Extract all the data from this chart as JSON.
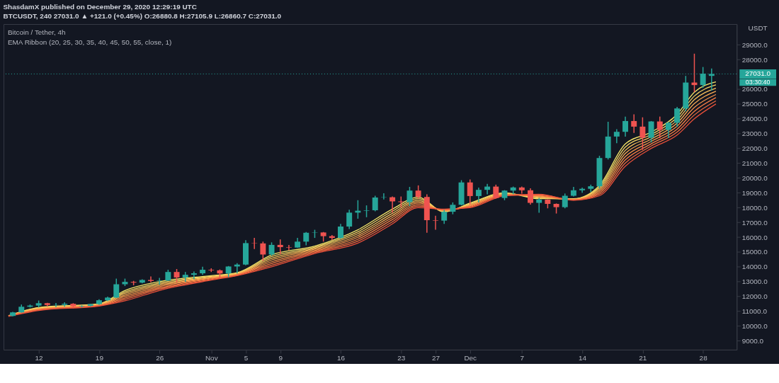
{
  "chart_data": {
    "type": "candlestick",
    "title": "ShasdamX published on December 29, 2020 12:29:19 UTC",
    "subtitle": "BTCUSDT, 240  27031.0 ▲ +121.0 (+0.45%) O:26880.8 H:27105.9 L:26860.7 C:27031.0",
    "ylabel": "USDT",
    "x": [
      "2020-10-09",
      "2020-10-10",
      "2020-10-11",
      "2020-10-12",
      "2020-10-13",
      "2020-10-14",
      "2020-10-15",
      "2020-10-16",
      "2020-10-17",
      "2020-10-18",
      "2020-10-19",
      "2020-10-20",
      "2020-10-21",
      "2020-10-22",
      "2020-10-23",
      "2020-10-24",
      "2020-10-25",
      "2020-10-26",
      "2020-10-27",
      "2020-10-28",
      "2020-10-29",
      "2020-10-30",
      "2020-10-31",
      "2020-11-01",
      "2020-11-02",
      "2020-11-03",
      "2020-11-04",
      "2020-11-05",
      "2020-11-06",
      "2020-11-07",
      "2020-11-08",
      "2020-11-09",
      "2020-11-10",
      "2020-11-11",
      "2020-11-12",
      "2020-11-13",
      "2020-11-14",
      "2020-11-15",
      "2020-11-16",
      "2020-11-17",
      "2020-11-18",
      "2020-11-19",
      "2020-11-20",
      "2020-11-21",
      "2020-11-22",
      "2020-11-23",
      "2020-11-24",
      "2020-11-25",
      "2020-11-26",
      "2020-11-27",
      "2020-11-28",
      "2020-11-29",
      "2020-11-30",
      "2020-12-01",
      "2020-12-02",
      "2020-12-03",
      "2020-12-04",
      "2020-12-05",
      "2020-12-06",
      "2020-12-07",
      "2020-12-08",
      "2020-12-09",
      "2020-12-10",
      "2020-12-11",
      "2020-12-12",
      "2020-12-13",
      "2020-12-14",
      "2020-12-15",
      "2020-12-16",
      "2020-12-17",
      "2020-12-18",
      "2020-12-19",
      "2020-12-20",
      "2020-12-21",
      "2020-12-22",
      "2020-12-23",
      "2020-12-24",
      "2020-12-25",
      "2020-12-26",
      "2020-12-27",
      "2020-12-28",
      "2020-12-29"
    ],
    "ohlc": [
      [
        10680,
        10950,
        10650,
        10920
      ],
      [
        10920,
        11450,
        10900,
        11300
      ],
      [
        11300,
        11450,
        11250,
        11380
      ],
      [
        11380,
        11720,
        11250,
        11540
      ],
      [
        11540,
        11560,
        11300,
        11420
      ],
      [
        11420,
        11550,
        11280,
        11430
      ],
      [
        11430,
        11600,
        11300,
        11500
      ],
      [
        11500,
        11540,
        11200,
        11330
      ],
      [
        11330,
        11400,
        11250,
        11360
      ],
      [
        11360,
        11500,
        11320,
        11480
      ],
      [
        11480,
        11800,
        11420,
        11740
      ],
      [
        11740,
        11980,
        11680,
        11920
      ],
      [
        11920,
        13200,
        11900,
        12820
      ],
      [
        12820,
        13200,
        12700,
        12980
      ],
      [
        12980,
        13050,
        12750,
        12930
      ],
      [
        12930,
        13150,
        12880,
        13110
      ],
      [
        13110,
        13350,
        12950,
        13040
      ],
      [
        13040,
        13250,
        12800,
        13070
      ],
      [
        13070,
        13800,
        13050,
        13650
      ],
      [
        13650,
        13850,
        12950,
        13280
      ],
      [
        13280,
        13650,
        12980,
        13460
      ],
      [
        13460,
        13680,
        13150,
        13560
      ],
      [
        13560,
        14000,
        13450,
        13800
      ],
      [
        13800,
        13900,
        13650,
        13760
      ],
      [
        13760,
        13820,
        13200,
        13550
      ],
      [
        13550,
        14050,
        13300,
        14020
      ],
      [
        14020,
        14250,
        13550,
        14150
      ],
      [
        14150,
        15800,
        14100,
        15600
      ],
      [
        15600,
        15950,
        15200,
        15580
      ],
      [
        15580,
        15700,
        14400,
        14830
      ],
      [
        14830,
        15650,
        14750,
        15480
      ],
      [
        15480,
        15850,
        14850,
        15330
      ],
      [
        15330,
        15480,
        15100,
        15300
      ],
      [
        15300,
        15950,
        15280,
        15700
      ],
      [
        15700,
        16350,
        15450,
        16300
      ],
      [
        16300,
        16500,
        15950,
        16320
      ],
      [
        16320,
        16350,
        15700,
        16070
      ],
      [
        16070,
        16150,
        15800,
        15950
      ],
      [
        15950,
        16900,
        15900,
        16720
      ],
      [
        16720,
        17850,
        16550,
        17660
      ],
      [
        17660,
        18500,
        17250,
        17790
      ],
      [
        17790,
        18150,
        17350,
        17820
      ],
      [
        17820,
        18800,
        17750,
        18680
      ],
      [
        18680,
        18970,
        18550,
        18700
      ],
      [
        18700,
        18750,
        17650,
        18420
      ],
      [
        18420,
        18750,
        18000,
        18370
      ],
      [
        18370,
        19400,
        18100,
        19150
      ],
      [
        19150,
        19500,
        18600,
        18720
      ],
      [
        18720,
        18900,
        16300,
        17150
      ],
      [
        17150,
        17450,
        16500,
        17120
      ],
      [
        17120,
        17850,
        16900,
        17720
      ],
      [
        17720,
        18350,
        17550,
        18190
      ],
      [
        18190,
        19850,
        18150,
        19700
      ],
      [
        19700,
        19900,
        18200,
        18780
      ],
      [
        18780,
        19350,
        18350,
        19200
      ],
      [
        19200,
        19600,
        18900,
        19420
      ],
      [
        19420,
        19550,
        18600,
        18650
      ],
      [
        18650,
        19180,
        18500,
        19150
      ],
      [
        19150,
        19420,
        18900,
        19360
      ],
      [
        19360,
        19420,
        18950,
        19170
      ],
      [
        19170,
        19300,
        18200,
        18320
      ],
      [
        18320,
        18650,
        17650,
        18540
      ],
      [
        18540,
        18560,
        17950,
        18250
      ],
      [
        18250,
        18280,
        17600,
        18030
      ],
      [
        18030,
        18950,
        17950,
        18800
      ],
      [
        18800,
        19400,
        18750,
        19170
      ],
      [
        19170,
        19350,
        19000,
        19270
      ],
      [
        19270,
        19550,
        19050,
        19440
      ],
      [
        19440,
        21500,
        19300,
        21350
      ],
      [
        21350,
        23800,
        21250,
        22800
      ],
      [
        22800,
        23300,
        22350,
        23120
      ],
      [
        23120,
        24150,
        22800,
        23850
      ],
      [
        23850,
        24300,
        23050,
        23470
      ],
      [
        23470,
        24100,
        21900,
        22720
      ],
      [
        22720,
        23850,
        22400,
        23820
      ],
      [
        23820,
        24150,
        22700,
        23250
      ],
      [
        23250,
        23800,
        22700,
        23730
      ],
      [
        23730,
        24800,
        23450,
        24700
      ],
      [
        24700,
        26900,
        24500,
        26450
      ],
      [
        26450,
        28400,
        25800,
        26280
      ],
      [
        26280,
        27500,
        26100,
        27050
      ],
      [
        26900,
        27400,
        25900,
        27031
      ]
    ],
    "colors": [
      "#26a69a",
      "#26a69a",
      "#26a69a",
      "#26a69a",
      "#ef5350",
      "#26a69a",
      "#26a69a",
      "#ef5350",
      "#26a69a",
      "#26a69a",
      "#26a69a",
      "#26a69a",
      "#26a69a",
      "#26a69a",
      "#ef5350",
      "#26a69a",
      "#ef5350",
      "#26a69a",
      "#26a69a",
      "#ef5350",
      "#26a69a",
      "#26a69a",
      "#26a69a",
      "#ef5350",
      "#ef5350",
      "#26a69a",
      "#26a69a",
      "#26a69a",
      "#ef5350",
      "#ef5350",
      "#26a69a",
      "#ef5350",
      "#ef5350",
      "#26a69a",
      "#26a69a",
      "#26a69a",
      "#ef5350",
      "#ef5350",
      "#26a69a",
      "#26a69a",
      "#26a69a",
      "#26a69a",
      "#26a69a",
      "#26a69a",
      "#ef5350",
      "#ef5350",
      "#26a69a",
      "#ef5350",
      "#ef5350",
      "#ef5350",
      "#26a69a",
      "#26a69a",
      "#26a69a",
      "#ef5350",
      "#26a69a",
      "#26a69a",
      "#ef5350",
      "#26a69a",
      "#26a69a",
      "#ef5350",
      "#ef5350",
      "#26a69a",
      "#ef5350",
      "#ef5350",
      "#26a69a",
      "#26a69a",
      "#26a69a",
      "#26a69a",
      "#26a69a",
      "#26a69a",
      "#26a69a",
      "#26a69a",
      "#ef5350",
      "#ef5350",
      "#26a69a",
      "#ef5350",
      "#26a69a",
      "#26a69a",
      "#26a69a",
      "#ef5350",
      "#26a69a",
      "#26a69a"
    ],
    "series": [
      {
        "type": "line",
        "color": "#f5e66a",
        "x": [
          "2020-10-08T12:00",
          "2020-10-12",
          "2020-10-19",
          "2020-10-22",
          "2020-10-26",
          "2020-11-01",
          "2020-11-04",
          "2020-11-08",
          "2020-11-13",
          "2020-11-18",
          "2020-11-22",
          "2020-11-25",
          "2020-11-28",
          "2020-12-01",
          "2020-12-05",
          "2020-12-09",
          "2020-12-13",
          "2020-12-16",
          "2020-12-19",
          "2020-12-22",
          "2020-12-25",
          "2020-12-27",
          "2020-12-29T12:00"
        ],
        "values": [
          10700,
          11250,
          11500,
          12400,
          13000,
          13400,
          13600,
          14800,
          15400,
          16500,
          17900,
          18700,
          17700,
          18300,
          19000,
          18600,
          18600,
          19500,
          22300,
          23100,
          24300,
          25800,
          26500
        ]
      },
      {
        "type": "line",
        "color": "#f6d462",
        "x": [
          "2020-10-08T12:00",
          "2020-10-12",
          "2020-10-19",
          "2020-10-22",
          "2020-10-26",
          "2020-11-01",
          "2020-11-04",
          "2020-11-08",
          "2020-11-13",
          "2020-11-18",
          "2020-11-22",
          "2020-11-25",
          "2020-11-28",
          "2020-12-01",
          "2020-12-05",
          "2020-12-09",
          "2020-12-13",
          "2020-12-16",
          "2020-12-19",
          "2020-12-22",
          "2020-12-25",
          "2020-12-27",
          "2020-12-29T12:00"
        ],
        "values": [
          10690,
          11220,
          11480,
          12300,
          12910,
          13360,
          13570,
          14690,
          15330,
          16370,
          17760,
          18600,
          17730,
          18260,
          18970,
          18640,
          18590,
          19400,
          22090,
          22940,
          24100,
          25540,
          26290
        ]
      },
      {
        "type": "line",
        "color": "#f8c05a",
        "x": [
          "2020-10-08T12:00",
          "2020-10-12",
          "2020-10-19",
          "2020-10-22",
          "2020-10-26",
          "2020-11-01",
          "2020-11-04",
          "2020-11-08",
          "2020-11-13",
          "2020-11-18",
          "2020-11-22",
          "2020-11-25",
          "2020-11-28",
          "2020-12-01",
          "2020-12-05",
          "2020-12-09",
          "2020-12-13",
          "2020-12-16",
          "2020-12-19",
          "2020-12-22",
          "2020-12-25",
          "2020-12-27",
          "2020-12-29T12:00"
        ],
        "values": [
          10690,
          11190,
          11460,
          12200,
          12830,
          13310,
          13540,
          14570,
          15260,
          16240,
          17610,
          18500,
          17760,
          18210,
          18940,
          18690,
          18570,
          19300,
          21870,
          22790,
          23900,
          25290,
          26070
        ]
      },
      {
        "type": "line",
        "color": "#f9aa52",
        "x": [
          "2020-10-08T12:00",
          "2020-10-12",
          "2020-10-19",
          "2020-10-22",
          "2020-10-26",
          "2020-11-01",
          "2020-11-04",
          "2020-11-08",
          "2020-11-13",
          "2020-11-18",
          "2020-11-22",
          "2020-11-25",
          "2020-11-28",
          "2020-12-01",
          "2020-12-05",
          "2020-12-09",
          "2020-12-13",
          "2020-12-16",
          "2020-12-19",
          "2020-12-22",
          "2020-12-25",
          "2020-12-27",
          "2020-12-29T12:00"
        ],
        "values": [
          10680,
          11160,
          11440,
          12100,
          12740,
          13270,
          13510,
          14460,
          15190,
          16110,
          17470,
          18400,
          17790,
          18170,
          18910,
          18730,
          18560,
          19200,
          21660,
          22630,
          23700,
          25030,
          25860
        ]
      },
      {
        "type": "line",
        "color": "#f8944b",
        "x": [
          "2020-10-08T12:00",
          "2020-10-12",
          "2020-10-19",
          "2020-10-22",
          "2020-10-26",
          "2020-11-01",
          "2020-11-04",
          "2020-11-08",
          "2020-11-13",
          "2020-11-18",
          "2020-11-22",
          "2020-11-25",
          "2020-11-28",
          "2020-12-01",
          "2020-12-05",
          "2020-12-09",
          "2020-12-13",
          "2020-12-16",
          "2020-12-19",
          "2020-12-22",
          "2020-12-25",
          "2020-12-27",
          "2020-12-29T12:00"
        ],
        "values": [
          10670,
          11140,
          11410,
          12000,
          12660,
          13230,
          13490,
          14340,
          15110,
          15990,
          17330,
          18300,
          17810,
          18130,
          18890,
          18770,
          18540,
          19100,
          21440,
          22470,
          23500,
          24770,
          25640
        ]
      },
      {
        "type": "line",
        "color": "#f67e45",
        "x": [
          "2020-10-08T12:00",
          "2020-10-12",
          "2020-10-19",
          "2020-10-22",
          "2020-10-26",
          "2020-11-01",
          "2020-11-04",
          "2020-11-08",
          "2020-11-13",
          "2020-11-18",
          "2020-11-22",
          "2020-11-25",
          "2020-11-28",
          "2020-12-01",
          "2020-12-05",
          "2020-12-09",
          "2020-12-13",
          "2020-12-16",
          "2020-12-19",
          "2020-12-22",
          "2020-12-25",
          "2020-12-27",
          "2020-12-29T12:00"
        ],
        "values": [
          10660,
          11110,
          11390,
          11900,
          12570,
          13190,
          13460,
          14230,
          15040,
          15860,
          17190,
          18200,
          17840,
          18090,
          18860,
          18810,
          18530,
          19000,
          21230,
          22310,
          23300,
          24510,
          25430
        ]
      },
      {
        "type": "line",
        "color": "#f06a40",
        "x": [
          "2020-10-08T12:00",
          "2020-10-12",
          "2020-10-19",
          "2020-10-22",
          "2020-10-26",
          "2020-11-01",
          "2020-11-04",
          "2020-11-08",
          "2020-11-13",
          "2020-11-18",
          "2020-11-22",
          "2020-11-25",
          "2020-11-28",
          "2020-12-01",
          "2020-12-05",
          "2020-12-09",
          "2020-12-13",
          "2020-12-16",
          "2020-12-19",
          "2020-12-22",
          "2020-12-25",
          "2020-12-27",
          "2020-12-29T12:00"
        ],
        "values": [
          10660,
          11080,
          11370,
          11800,
          12490,
          13140,
          13430,
          14110,
          14970,
          15730,
          17040,
          18100,
          17870,
          18040,
          18830,
          18860,
          18510,
          18900,
          21010,
          22160,
          23100,
          24260,
          25210
        ]
      },
      {
        "type": "line",
        "color": "#e8503a",
        "x": [
          "2020-10-08T12:00",
          "2020-10-12",
          "2020-10-19",
          "2020-10-22",
          "2020-10-26",
          "2020-11-01",
          "2020-11-04",
          "2020-11-08",
          "2020-11-13",
          "2020-11-18",
          "2020-11-22",
          "2020-11-25",
          "2020-11-28",
          "2020-12-01",
          "2020-12-05",
          "2020-12-09",
          "2020-12-13",
          "2020-12-16",
          "2020-12-19",
          "2020-12-22",
          "2020-12-25",
          "2020-12-27",
          "2020-12-29T12:00"
        ],
        "values": [
          10650,
          11050,
          11350,
          11700,
          12400,
          13100,
          13400,
          14000,
          14900,
          15600,
          16900,
          18000,
          17900,
          18000,
          18800,
          18900,
          18500,
          18800,
          20800,
          22000,
          22900,
          24000,
          25000
        ]
      }
    ],
    "xlim": [
      "2020-10-08T08:00",
      "2020-12-31T12:00"
    ],
    "xticks": [
      {
        "value": "2020-10-12",
        "label": "12"
      },
      {
        "value": "2020-10-19",
        "label": "19"
      },
      {
        "value": "2020-10-26",
        "label": "26"
      },
      {
        "value": "2020-11-01",
        "label": "Nov"
      },
      {
        "value": "2020-11-05",
        "label": "5"
      },
      {
        "value": "2020-11-09",
        "label": "9"
      },
      {
        "value": "2020-11-16",
        "label": "16"
      },
      {
        "value": "2020-11-23",
        "label": "23"
      },
      {
        "value": "2020-11-27",
        "label": "27"
      },
      {
        "value": "2020-12-01",
        "label": "Dec"
      },
      {
        "value": "2020-12-07",
        "label": "7"
      },
      {
        "value": "2020-12-14",
        "label": "14"
      },
      {
        "value": "2020-12-21",
        "label": "21"
      },
      {
        "value": "2020-12-28",
        "label": "28"
      }
    ],
    "ylim": [
      8400,
      30400
    ],
    "yticks": [
      {
        "value": 9000,
        "label": "9000.0"
      },
      {
        "value": 10000,
        "label": "10000.0"
      },
      {
        "value": 11000,
        "label": "11000.0"
      },
      {
        "value": 12000,
        "label": "12000.0"
      },
      {
        "value": 13000,
        "label": "13000.0"
      },
      {
        "value": 14000,
        "label": "14000.0"
      },
      {
        "value": 15000,
        "label": "15000.0"
      },
      {
        "value": 16000,
        "label": "16000.0"
      },
      {
        "value": 17000,
        "label": "17000.0"
      },
      {
        "value": 18000,
        "label": "18000.0"
      },
      {
        "value": 19000,
        "label": "19000.0"
      },
      {
        "value": 20000,
        "label": "20000.0"
      },
      {
        "value": 21000,
        "label": "21000.0"
      },
      {
        "value": 22000,
        "label": "22000.0"
      },
      {
        "value": 23000,
        "label": "23000.0"
      },
      {
        "value": 24000,
        "label": "24000.0"
      },
      {
        "value": 25000,
        "label": "25000.0"
      },
      {
        "value": 26000,
        "label": "26000.0"
      },
      {
        "value": 28000,
        "label": "28000.0"
      },
      {
        "value": 29000,
        "label": "29000.0"
      }
    ],
    "ref_lines": [
      {
        "axis": "y",
        "value": 27031,
        "label": "27031.0",
        "color": "#26a69a",
        "line_style": "dotted"
      }
    ],
    "annotations": [
      "Bitcoin / Tether, 4h",
      "EMA Ribbon (20, 25, 30, 35, 40, 45, 50, 55, close, 1)",
      "03:30:40"
    ],
    "grid": false
  }
}
